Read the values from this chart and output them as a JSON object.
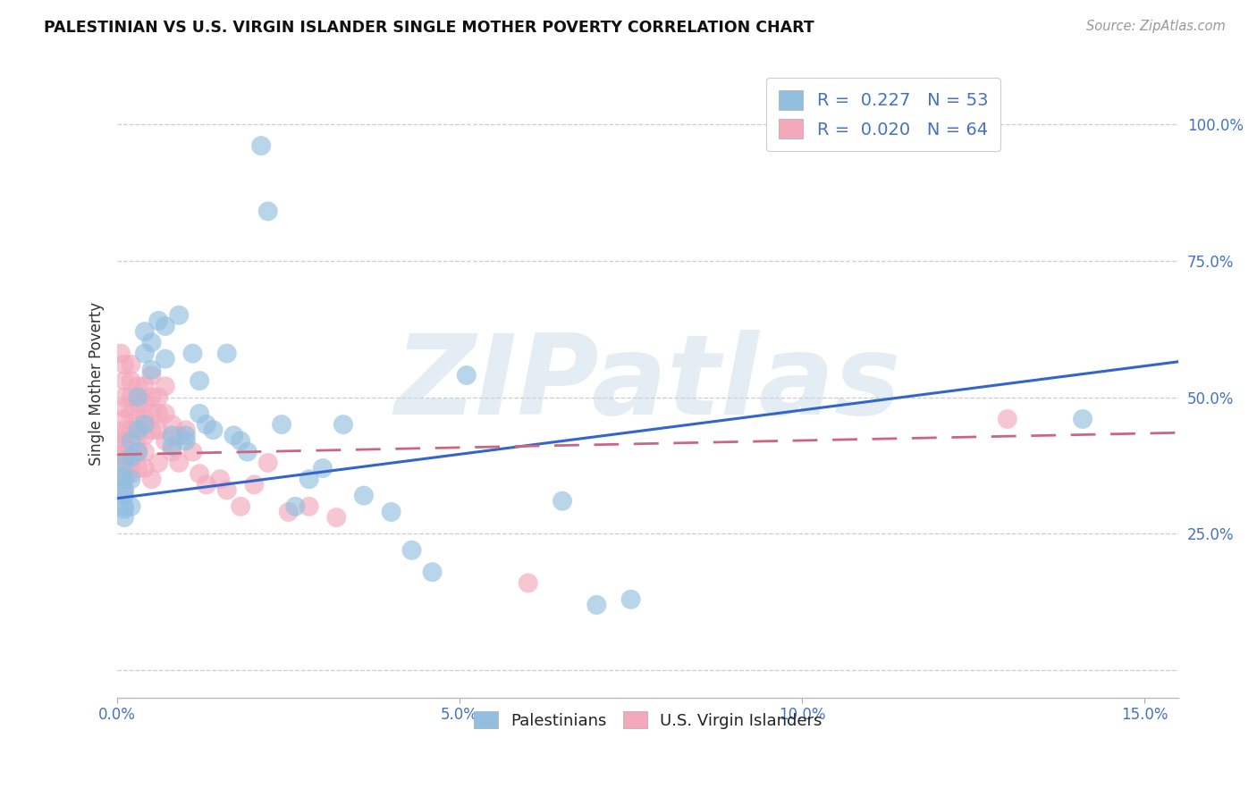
{
  "title": "PALESTINIAN VS U.S. VIRGIN ISLANDER SINGLE MOTHER POVERTY CORRELATION CHART",
  "source": "Source: ZipAtlas.com",
  "ylabel": "Single Mother Poverty",
  "xlim": [
    0.0,
    0.155
  ],
  "ylim": [
    -0.05,
    1.1
  ],
  "xticks": [
    0.0,
    0.05,
    0.1,
    0.15
  ],
  "xticklabels": [
    "0.0%",
    "5.0%",
    "10.0%",
    "15.0%"
  ],
  "yticks": [
    0.0,
    0.25,
    0.5,
    0.75,
    1.0
  ],
  "yticklabels": [
    "",
    "25.0%",
    "50.0%",
    "75.0%",
    "100.0%"
  ],
  "legend1_label": "R =  0.227   N = 53",
  "legend2_label": "R =  0.020   N = 64",
  "color_blue": "#92bfe0",
  "color_pink": "#f4a8bc",
  "line_blue": "#3366cc",
  "line_pink": "#cc6680",
  "watermark": "ZIPatlas",
  "blue_line_x0": 0.0,
  "blue_line_x1": 0.155,
  "blue_line_y0": 0.315,
  "blue_line_y1": 0.565,
  "pink_line_x0": 0.0,
  "pink_line_x1": 0.155,
  "pink_line_y0": 0.395,
  "pink_line_y1": 0.435,
  "pal_x": [
    0.0005,
    0.001,
    0.001,
    0.001,
    0.001,
    0.001,
    0.001,
    0.001,
    0.002,
    0.002,
    0.002,
    0.002,
    0.003,
    0.003,
    0.003,
    0.004,
    0.004,
    0.004,
    0.005,
    0.005,
    0.006,
    0.007,
    0.007,
    0.008,
    0.008,
    0.009,
    0.01,
    0.01,
    0.011,
    0.012,
    0.012,
    0.013,
    0.014,
    0.016,
    0.017,
    0.018,
    0.019,
    0.021,
    0.022,
    0.024,
    0.026,
    0.028,
    0.03,
    0.033,
    0.036,
    0.04,
    0.043,
    0.046,
    0.051,
    0.065,
    0.07,
    0.075,
    0.141
  ],
  "pal_y": [
    0.355,
    0.38,
    0.35,
    0.32,
    0.3,
    0.28,
    0.33,
    0.295,
    0.42,
    0.39,
    0.35,
    0.3,
    0.5,
    0.44,
    0.4,
    0.62,
    0.58,
    0.45,
    0.6,
    0.55,
    0.64,
    0.63,
    0.57,
    0.43,
    0.41,
    0.65,
    0.43,
    0.42,
    0.58,
    0.53,
    0.47,
    0.45,
    0.44,
    0.58,
    0.43,
    0.42,
    0.4,
    0.96,
    0.84,
    0.45,
    0.3,
    0.35,
    0.37,
    0.45,
    0.32,
    0.29,
    0.22,
    0.18,
    0.54,
    0.31,
    0.12,
    0.13,
    0.46
  ],
  "vi_x": [
    0.0003,
    0.0005,
    0.001,
    0.001,
    0.001,
    0.001,
    0.001,
    0.001,
    0.001,
    0.001,
    0.001,
    0.001,
    0.001,
    0.001,
    0.001,
    0.002,
    0.002,
    0.002,
    0.002,
    0.002,
    0.002,
    0.002,
    0.003,
    0.003,
    0.003,
    0.003,
    0.003,
    0.003,
    0.004,
    0.004,
    0.004,
    0.004,
    0.004,
    0.004,
    0.005,
    0.005,
    0.005,
    0.005,
    0.005,
    0.006,
    0.006,
    0.006,
    0.006,
    0.007,
    0.007,
    0.007,
    0.008,
    0.008,
    0.009,
    0.009,
    0.01,
    0.011,
    0.012,
    0.013,
    0.015,
    0.016,
    0.018,
    0.02,
    0.022,
    0.025,
    0.028,
    0.032,
    0.06,
    0.13
  ],
  "vi_y": [
    0.395,
    0.58,
    0.56,
    0.53,
    0.5,
    0.48,
    0.46,
    0.44,
    0.42,
    0.39,
    0.37,
    0.35,
    0.33,
    0.43,
    0.41,
    0.56,
    0.53,
    0.5,
    0.47,
    0.44,
    0.38,
    0.36,
    0.52,
    0.49,
    0.46,
    0.43,
    0.4,
    0.37,
    0.52,
    0.49,
    0.46,
    0.43,
    0.4,
    0.37,
    0.54,
    0.5,
    0.47,
    0.44,
    0.35,
    0.5,
    0.47,
    0.44,
    0.38,
    0.52,
    0.47,
    0.42,
    0.45,
    0.4,
    0.43,
    0.38,
    0.44,
    0.4,
    0.36,
    0.34,
    0.35,
    0.33,
    0.3,
    0.34,
    0.38,
    0.29,
    0.3,
    0.28,
    0.16,
    0.46
  ]
}
